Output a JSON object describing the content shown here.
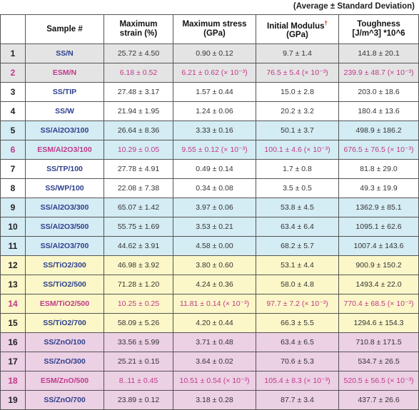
{
  "caption": "(Average  ±  Standard Deviation)",
  "headers": {
    "index": "",
    "sample": "Sample #",
    "strain_line1": "Maximum",
    "strain_line2": "strain (%)",
    "stress_line1": "Maximum stress",
    "stress_line2": "(GPa)",
    "modulus_line1": "Initial Modulus",
    "modulus_mark": "†",
    "modulus_line2": "(GPa)",
    "tough_line1": "Toughness",
    "tough_line2": "[J/m^3] *10^6"
  },
  "colors": {
    "gray": "#e4e4e4",
    "white": "#ffffff",
    "blue": "#d4ecf4",
    "yellow": "#fbf7c8",
    "pink": "#ecd0e4",
    "sample_blue": "#2c3f8c",
    "esm_magenta": "#c0398a"
  },
  "rows": [
    {
      "no": "1",
      "sample": "SS/N",
      "strain": "25.72 ± 4.50",
      "stress": "0.90 ± 0.12",
      "modulus": "9.7 ± 1.4",
      "tough": "141.8 ± 20.1",
      "bg": "gray",
      "esm": false
    },
    {
      "no": "2",
      "sample": "ESM/N",
      "strain": "6.18 ± 0.52",
      "stress": "6.21 ± 0.62 (× 10⁻³)",
      "modulus": "76.5  ± 5.4 (× 10⁻³)",
      "tough": "239.9 ± 48.7 (× 10⁻³)",
      "bg": "gray",
      "esm": true
    },
    {
      "no": "3",
      "sample": "SS/TIP",
      "strain": "27.48 ± 3.17",
      "stress": "1.57 ± 0.44",
      "modulus": "15.0 ± 2.8",
      "tough": "203.0 ± 18.6",
      "bg": "white",
      "esm": false
    },
    {
      "no": "4",
      "sample": "SS/W",
      "strain": "21.94 ± 1.95",
      "stress": "1.24 ± 0.06",
      "modulus": "20.2 ± 3.2",
      "tough": "180.4 ± 13.6",
      "bg": "white",
      "esm": false
    },
    {
      "no": "5",
      "sample": "SS/Al2O3/100",
      "strain": "26.64 ± 8.36",
      "stress": "3.33 ± 0.16",
      "modulus": "50.1 ± 3.7",
      "tough": "498.9 ± 186.2",
      "bg": "blue",
      "esm": false
    },
    {
      "no": "6",
      "sample": "ESM/Al2O3/100",
      "strain": "10.29 ± 0.05",
      "stress": "9.55 ± 0.12 (× 10⁻³)",
      "modulus": "100.1 ± 4.6 (× 10⁻³)",
      "tough": "676.5 ± 76.5 (× 10⁻³)",
      "bg": "blue",
      "esm": true
    },
    {
      "no": "7",
      "sample": "SS/TP/100",
      "strain": "27.78 ± 4.91",
      "stress": "0.49 ± 0.14",
      "modulus": "1.7 ± 0.8",
      "tough": "81.8 ± 29.0",
      "bg": "white",
      "esm": false
    },
    {
      "no": "8",
      "sample": "SS/WP/100",
      "strain": "22.08 ± 7.38",
      "stress": "0.34 ± 0.08",
      "modulus": "3.5  ± 0.5",
      "tough": "49.3 ± 19.9",
      "bg": "white",
      "esm": false
    },
    {
      "no": "9",
      "sample": "SS/Al2O3/300",
      "strain": "65.07 ± 1.42",
      "stress": "3.97 ± 0.06",
      "modulus": "53.8 ± 4.5",
      "tough": "1362.9 ± 85.1",
      "bg": "blue",
      "esm": false
    },
    {
      "no": "10",
      "sample": "SS/Al2O3/500",
      "strain": "55.75 ± 1.69",
      "stress": "3.53 ± 0.21",
      "modulus": "63.4 ± 6.4",
      "tough": "1095.1 ± 62.6",
      "bg": "blue",
      "esm": false
    },
    {
      "no": "11",
      "sample": "SS/Al2O3/700",
      "strain": "44.62 ± 3.91",
      "stress": "4.58 ± 0.00",
      "modulus": "68.2 ± 5.7",
      "tough": "1007.4 ± 143.6",
      "bg": "blue",
      "esm": false
    },
    {
      "no": "12",
      "sample": "SS/TiO2/300",
      "strain": "46.98 ± 3.92",
      "stress": "3.80 ± 0.60",
      "modulus": "53.1 ± 4.4",
      "tough": "900.9 ± 150.2",
      "bg": "yellow",
      "esm": false
    },
    {
      "no": "13",
      "sample": "SS/TiO2/500",
      "strain": "71.28 ± 1.20",
      "stress": "4.24 ± 0.36",
      "modulus": "58.0 ± 4.8",
      "tough": "1493.4 ± 22.0",
      "bg": "yellow",
      "esm": false
    },
    {
      "no": "14",
      "sample": "ESM/TiO2/500",
      "strain": "10.25 ± 0.25",
      "stress": "11.81 ± 0.14 (× 10⁻³)",
      "modulus": "97.7 ± 7.2 (× 10⁻³)",
      "tough": "770.4 ± 68.5 (× 10⁻³)",
      "bg": "yellow",
      "esm": true
    },
    {
      "no": "15",
      "sample": "SS/TiO2/700",
      "strain": "58.09 ± 5.26",
      "stress": "4.20 ± 0.44",
      "modulus": "66.3 ± 5.5",
      "tough": "1294.6 ± 154.3",
      "bg": "yellow",
      "esm": false
    },
    {
      "no": "16",
      "sample": "SS/ZnO/100",
      "strain": "33.56 ± 5.99",
      "stress": "3.71 ± 0.48",
      "modulus": "63.4 ± 6.5",
      "tough": "710.8 ± 171.5",
      "bg": "pink",
      "esm": false
    },
    {
      "no": "17",
      "sample": "SS/ZnO/300",
      "strain": "25.21 ± 0.15",
      "stress": "3.64 ± 0.02",
      "modulus": "70.6 ± 5.3",
      "tough": "534.7 ± 26.5",
      "bg": "pink",
      "esm": false
    },
    {
      "no": "18",
      "sample": "ESM/ZnO/500",
      "strain": "8..11 ± 0.45",
      "stress": "10.51 ± 0.54 (× 10⁻³)",
      "modulus": "105.4 ± 8.3 (× 10⁻³)",
      "tough": "520.5 ± 56.5 (× 10⁻³)",
      "bg": "pink",
      "esm": true
    },
    {
      "no": "19",
      "sample": "SS/ZnO/700",
      "strain": "23.89 ± 0.12",
      "stress": "3.18 ± 0.28",
      "modulus": "87.7 ± 3.4",
      "tough": "437.7 ± 26.6",
      "bg": "pink",
      "esm": false
    }
  ]
}
